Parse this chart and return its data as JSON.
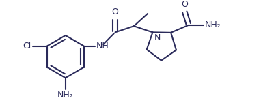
{
  "line_color": "#2a2a5a",
  "bg_color": "#ffffff",
  "line_width": 1.5,
  "font_size": 9,
  "figsize": [
    3.82,
    1.57
  ],
  "dpi": 100,
  "xlim": [
    0.0,
    10.0
  ],
  "ylim": [
    0.0,
    4.0
  ]
}
